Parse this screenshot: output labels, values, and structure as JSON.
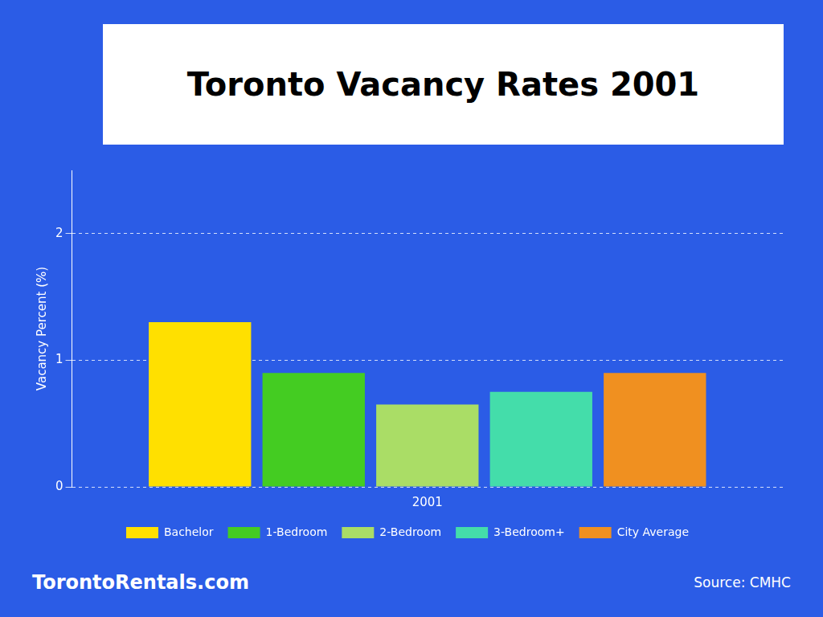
{
  "chart_data": {
    "type": "bar",
    "title": "Toronto Vacancy Rates 2001",
    "categories": [
      "2001"
    ],
    "series": [
      {
        "name": "Bachelor",
        "color": "#FFE000",
        "values": [
          1.3
        ]
      },
      {
        "name": "1-Bedroom",
        "color": "#44CC22",
        "values": [
          0.9
        ]
      },
      {
        "name": "2-Bedroom",
        "color": "#AADD66",
        "values": [
          0.65
        ]
      },
      {
        "name": "3-Bedroom+",
        "color": "#44DDAA",
        "values": [
          0.75
        ]
      },
      {
        "name": "City Average",
        "color": "#F09020",
        "values": [
          0.9
        ]
      }
    ],
    "ylabel": "Vacancy Percent (%)",
    "ylim": [
      0,
      2.5
    ],
    "yticks": [
      0,
      1,
      2
    ],
    "grid": true,
    "legend": "bottom",
    "annotations": [
      "TorontoRentals.com",
      "Source: CMHC"
    ]
  }
}
